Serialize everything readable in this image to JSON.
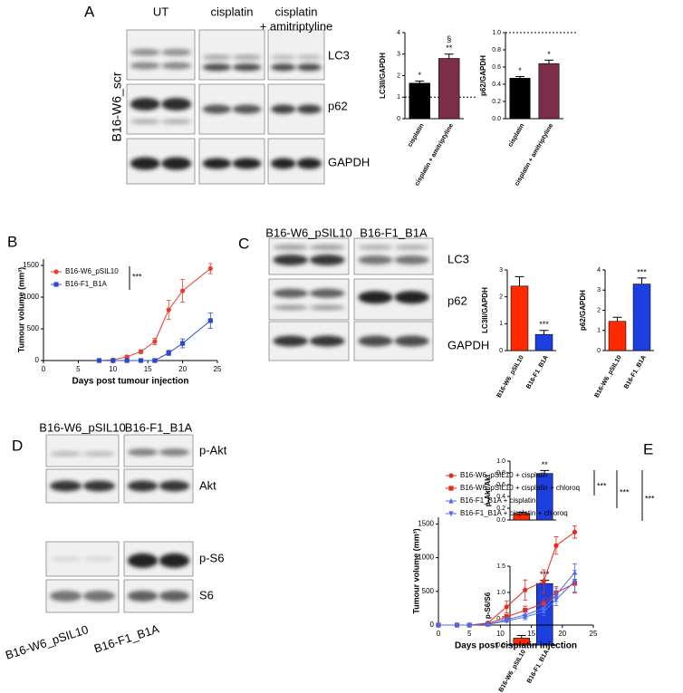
{
  "panel_labels": [
    "A",
    "B",
    "C",
    "D",
    "E"
  ],
  "blots": {
    "A": {
      "headers": [
        [
          "UT"
        ],
        [
          "cisplatin"
        ],
        [
          "cisplatin",
          "+ amitriptyline"
        ]
      ],
      "rows": [
        "LC3",
        "p62",
        "GAPDH"
      ],
      "side": "B16-W6_scr"
    },
    "C": {
      "headers": [
        "B16-W6_pSIL10",
        "B16-F1_B1A"
      ],
      "rows": [
        "LC3",
        "p62",
        "GAPDH"
      ]
    },
    "D": {
      "headers": [
        "B16-W6_pSIL10",
        "B16-F1_B1A"
      ],
      "rows": [
        "p-Akt",
        "Akt",
        "p-S6",
        "S6"
      ],
      "footer": [
        "B16-W6_pSIL10",
        "B16-F1_B1A"
      ]
    }
  },
  "chart_data": [
    {
      "type": "bar",
      "ylabel": "LC3II/GAPDH",
      "categories": [
        "cisplatin",
        "cisplatin + amitriptyline"
      ],
      "values": [
        1.65,
        2.8
      ],
      "errors": [
        0.1,
        0.2
      ],
      "colors": [
        "#000000",
        "#7b2d4a"
      ],
      "ylim": [
        0,
        4
      ],
      "yticks": [
        0,
        1,
        2,
        3,
        4
      ],
      "reference_line": 1,
      "annotations": [
        [
          "*"
        ],
        [
          "§",
          "**"
        ]
      ]
    },
    {
      "type": "bar",
      "ylabel": "p62/GAPDH",
      "categories": [
        "cisplatin",
        "cisplatin + amitriptyline"
      ],
      "values": [
        0.47,
        0.64
      ],
      "errors": [
        0.02,
        0.04
      ],
      "colors": [
        "#000000",
        "#7b2d4a"
      ],
      "ylim": [
        0,
        1
      ],
      "yticks": [
        {
          "value": 0,
          "label": "0.0"
        },
        0.2,
        0.4,
        0.6,
        0.8,
        {
          "value": 1,
          "label": "1.0"
        }
      ],
      "reference_line": 1,
      "annotations": [
        [
          "*"
        ],
        [
          "*"
        ]
      ]
    },
    {
      "type": "line",
      "xlabel": "Days post tumour injection",
      "ylabel": "Tumour volume (mm³)",
      "x": [
        8,
        10,
        12,
        14,
        16,
        18,
        20,
        24
      ],
      "series": [
        {
          "name": "B16-W6_pSIL10",
          "color": "#ee3b2b",
          "marker": "circle",
          "values": [
            0,
            10,
            60,
            140,
            300,
            800,
            1100,
            1450
          ],
          "errors": [
            0,
            5,
            20,
            30,
            50,
            150,
            180,
            80
          ]
        },
        {
          "name": "B16-F1_B1A",
          "color": "#2a48d6",
          "marker": "square",
          "values": [
            0,
            0,
            0,
            0,
            0,
            120,
            270,
            630
          ],
          "errors": [
            0,
            0,
            0,
            0,
            0,
            40,
            70,
            120
          ]
        }
      ],
      "xlim": [
        0,
        25
      ],
      "xticks": [
        0,
        5,
        10,
        15,
        20,
        25
      ],
      "ylim": [
        0,
        1600
      ],
      "yticks": [
        0,
        500,
        1000,
        1500
      ],
      "legend": "upper left",
      "significance": [
        "***"
      ]
    },
    {
      "type": "bar",
      "ylabel": "LC3II/GAPDH",
      "categories": [
        "B16-W6_pSIL10",
        "B16-F1_B1A"
      ],
      "values": [
        2.4,
        0.6
      ],
      "errors": [
        0.35,
        0.15
      ],
      "colors": [
        "#ff2a00",
        "#1d3fe0"
      ],
      "ylim": [
        0,
        3
      ],
      "yticks": [
        0,
        1,
        2,
        3
      ],
      "annotations": [
        [],
        [
          "***"
        ]
      ]
    },
    {
      "type": "bar",
      "ylabel": "p62/GAPDH",
      "categories": [
        "B16-W6_pSIL10",
        "B16-F1_B1A"
      ],
      "values": [
        1.45,
        3.3
      ],
      "errors": [
        0.2,
        0.3
      ],
      "colors": [
        "#ff2a00",
        "#1d3fe0"
      ],
      "ylim": [
        0,
        4
      ],
      "yticks": [
        0,
        1,
        2,
        3,
        4
      ],
      "annotations": [
        [],
        [
          "***"
        ]
      ]
    },
    {
      "type": "bar",
      "ylabel": "p-Akt/Akt",
      "categories": [
        null,
        null
      ],
      "values": [
        0.11,
        0.79
      ],
      "errors": [
        0.02,
        0.05
      ],
      "colors": [
        "#ff2a00",
        "#1d3fe0"
      ],
      "ylim": [
        0,
        1
      ],
      "yticks": [
        {
          "value": 0,
          "label": "0.0"
        },
        0.2,
        0.4,
        0.6,
        0.8,
        {
          "value": 1,
          "label": "1.0"
        }
      ],
      "annotations": [
        [],
        [
          "**"
        ]
      ]
    },
    {
      "type": "bar",
      "ylabel": "p-S6/S6",
      "categories": [
        "B16-W6_pSIL10",
        "B16-F1_B1A"
      ],
      "values": [
        0.13,
        1.17
      ],
      "errors": [
        0.05,
        0.06
      ],
      "colors": [
        "#ff2a00",
        "#1d3fe0"
      ],
      "ylim": [
        0,
        1.5
      ],
      "yticks": [
        {
          "value": 0,
          "label": "0.0"
        },
        0.5,
        {
          "value": 1,
          "label": "1.0"
        },
        1.5
      ],
      "annotations": [
        [],
        [
          "***"
        ]
      ]
    },
    {
      "type": "line",
      "xlabel": "Days post cisplatin injection",
      "ylabel": "Tumour volume (mm³)",
      "x": [
        0,
        3,
        5,
        8,
        11,
        14,
        17,
        19,
        22
      ],
      "series": [
        {
          "name": "B16-W6_pSIL10 + cisplatin",
          "color": "#e8291c",
          "marker": "circle",
          "values": [
            0,
            0,
            0,
            30,
            270,
            520,
            650,
            1180,
            1380
          ],
          "errors": [
            0,
            0,
            0,
            10,
            90,
            150,
            170,
            130,
            90
          ]
        },
        {
          "name": "B16-W6_pSIL10 + cisplatin + chloroq",
          "color": "#e8291c",
          "marker": "square",
          "values": [
            0,
            0,
            0,
            20,
            120,
            220,
            320,
            480,
            620
          ],
          "errors": [
            0,
            0,
            0,
            10,
            40,
            60,
            70,
            90,
            140
          ]
        },
        {
          "name": "B16-F1_B1A + cisplatin",
          "color": "#4a6cf0",
          "marker": "triangle",
          "values": [
            0,
            0,
            0,
            10,
            80,
            150,
            250,
            450,
            780
          ],
          "errors": [
            0,
            0,
            0,
            5,
            30,
            50,
            70,
            100,
            130
          ]
        },
        {
          "name": "B16-F1_B1A + cisplatin + chloroq",
          "color": "#4a6cf0",
          "marker": "down-triangle",
          "values": [
            0,
            0,
            0,
            10,
            60,
            120,
            200,
            380,
            650
          ],
          "errors": [
            0,
            0,
            0,
            5,
            20,
            40,
            60,
            90,
            160
          ]
        }
      ],
      "xlim": [
        0,
        25
      ],
      "xticks": [
        0,
        5,
        10,
        15,
        20,
        25
      ],
      "ylim": [
        0,
        1600
      ],
      "yticks": [
        0,
        500,
        1000,
        1500
      ],
      "legend": "upper left",
      "significance": [
        "***",
        "***",
        "***"
      ]
    }
  ]
}
